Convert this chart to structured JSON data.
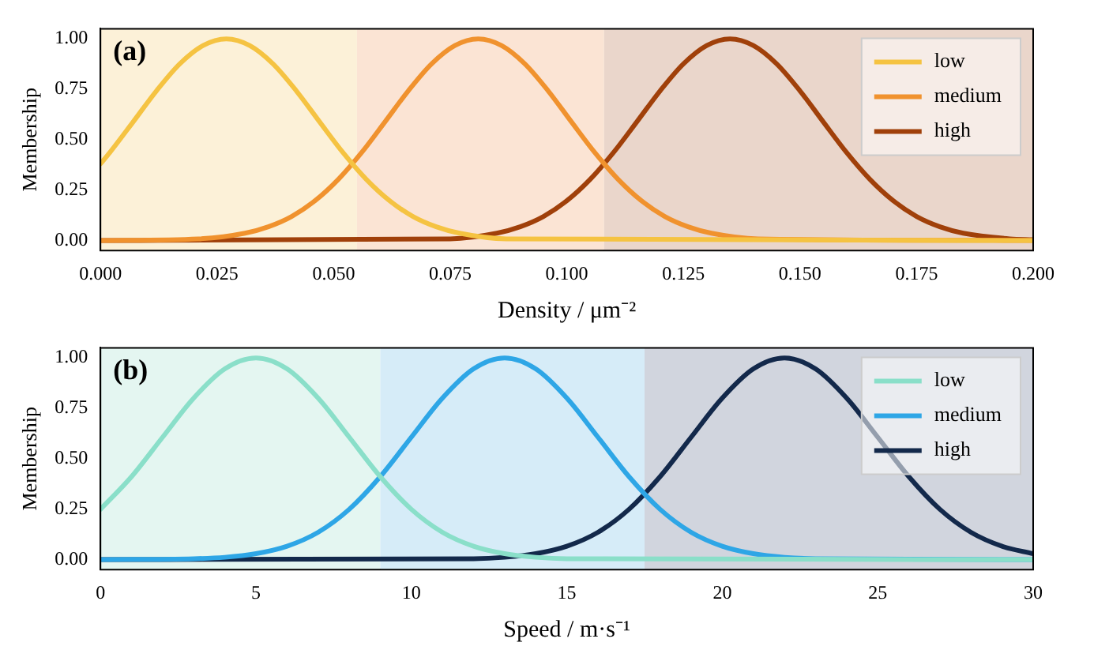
{
  "chart_data": [
    {
      "type": "line",
      "annotations": [
        "(a)"
      ],
      "xlabel": "Density / μm⁻²",
      "ylabel": "Membership",
      "xlim": [
        0,
        0.2
      ],
      "ylim": [
        -0.05,
        1.05
      ],
      "xticks": [
        {
          "value": 0,
          "label": "0.000"
        },
        {
          "value": 0.025,
          "label": "0.025"
        },
        {
          "value": 0.05,
          "label": "0.050"
        },
        {
          "value": 0.075,
          "label": "0.075"
        },
        {
          "value": 0.1,
          "label": "0.100"
        },
        {
          "value": 0.125,
          "label": "0.125"
        },
        {
          "value": 0.15,
          "label": "0.150"
        },
        {
          "value": 0.175,
          "label": "0.175"
        },
        {
          "value": 0.2,
          "label": "0.200"
        }
      ],
      "yticks": [
        {
          "value": 0,
          "label": "0.00"
        },
        {
          "value": 0.25,
          "label": "0.25"
        },
        {
          "value": 0.5,
          "label": "0.50"
        },
        {
          "value": 0.75,
          "label": "0.75"
        },
        {
          "value": 1,
          "label": "1.00"
        }
      ],
      "legend": "top right",
      "grid": false,
      "marker": "none",
      "line_style": "solid",
      "bands": [
        {
          "axis": "x",
          "from": 0,
          "to": 0.055,
          "color": "#fcf1d8"
        },
        {
          "axis": "x",
          "from": 0.055,
          "to": 0.108,
          "color": "#fbe4d4"
        },
        {
          "axis": "x",
          "from": 0.108,
          "to": 0.2,
          "color": "#ead6cb"
        }
      ],
      "series": [
        {
          "name": "low",
          "color": "#f5c342",
          "x": [
            0,
            0.002,
            0.007,
            0.012,
            0.017,
            0.022,
            0.027,
            0.032,
            0.037,
            0.042,
            0.047,
            0.052,
            0.057,
            0.062,
            0.067,
            0.072,
            0.077,
            0.087,
            0.2
          ],
          "values": [
            0.38,
            0.436,
            0.588,
            0.742,
            0.876,
            0.967,
            1,
            0.967,
            0.876,
            0.742,
            0.588,
            0.436,
            0.303,
            0.197,
            0.119,
            0.068,
            0.036,
            0.008,
            0
          ]
        },
        {
          "name": "medium",
          "color": "#f0922e",
          "x": [
            0,
            0.021,
            0.031,
            0.036,
            0.041,
            0.046,
            0.051,
            0.056,
            0.061,
            0.066,
            0.071,
            0.076,
            0.081,
            0.086,
            0.091,
            0.096,
            0.101,
            0.106,
            0.111,
            0.116,
            0.121,
            0.126,
            0.131,
            0.141,
            0.2
          ],
          "values": [
            0,
            0.008,
            0.036,
            0.068,
            0.119,
            0.197,
            0.303,
            0.436,
            0.588,
            0.742,
            0.876,
            0.967,
            1,
            0.967,
            0.876,
            0.742,
            0.588,
            0.436,
            0.303,
            0.197,
            0.119,
            0.068,
            0.036,
            0.008,
            0
          ]
        },
        {
          "name": "high",
          "color": "#a0400a",
          "x": [
            0,
            0.075,
            0.085,
            0.09,
            0.095,
            0.1,
            0.105,
            0.11,
            0.115,
            0.12,
            0.125,
            0.13,
            0.135,
            0.14,
            0.145,
            0.15,
            0.155,
            0.16,
            0.165,
            0.17,
            0.175,
            0.18,
            0.185,
            0.195,
            0.2
          ],
          "values": [
            0,
            0.008,
            0.036,
            0.068,
            0.119,
            0.197,
            0.303,
            0.436,
            0.588,
            0.742,
            0.876,
            0.967,
            1,
            0.967,
            0.876,
            0.742,
            0.588,
            0.436,
            0.303,
            0.197,
            0.119,
            0.068,
            0.036,
            0.008,
            0.004
          ]
        }
      ]
    },
    {
      "type": "line",
      "annotations": [
        "(b)"
      ],
      "xlabel": "Speed / m·s⁻¹",
      "ylabel": "Membership",
      "xlim": [
        0,
        30
      ],
      "ylim": [
        -0.05,
        1.05
      ],
      "xticks": [
        0,
        5,
        10,
        15,
        20,
        25,
        30
      ],
      "yticks": [
        {
          "value": 0,
          "label": "0.00"
        },
        {
          "value": 0.25,
          "label": "0.25"
        },
        {
          "value": 0.5,
          "label": "0.50"
        },
        {
          "value": 0.75,
          "label": "0.75"
        },
        {
          "value": 1,
          "label": "1.00"
        }
      ],
      "legend": "top right",
      "grid": false,
      "marker": "none",
      "line_style": "solid",
      "bands": [
        {
          "axis": "x",
          "from": 0,
          "to": 9,
          "color": "#e4f6f1"
        },
        {
          "axis": "x",
          "from": 9,
          "to": 17.5,
          "color": "#d6ecf8"
        },
        {
          "axis": "x",
          "from": 17.5,
          "to": 30,
          "color": "#d1d5de"
        }
      ],
      "series": [
        {
          "name": "low",
          "color": "#8adfc9",
          "x": [
            0,
            1,
            2,
            3,
            4,
            5,
            6,
            7,
            8,
            9,
            10,
            11,
            12,
            13,
            14,
            15,
            30
          ],
          "values": [
            0.249,
            0.411,
            0.607,
            0.801,
            0.946,
            1,
            0.946,
            0.801,
            0.607,
            0.411,
            0.249,
            0.135,
            0.066,
            0.029,
            0.011,
            0.004,
            0
          ]
        },
        {
          "name": "medium",
          "color": "#2ea6e6",
          "x": [
            0,
            3,
            4,
            5,
            6,
            7,
            8,
            9,
            10,
            11,
            12,
            13,
            14,
            15,
            16,
            17,
            18,
            19,
            20,
            21,
            22,
            23,
            30
          ],
          "values": [
            0,
            0.004,
            0.011,
            0.029,
            0.066,
            0.135,
            0.249,
            0.411,
            0.607,
            0.801,
            0.946,
            1,
            0.946,
            0.801,
            0.607,
            0.411,
            0.249,
            0.135,
            0.066,
            0.029,
            0.011,
            0.004,
            0
          ]
        },
        {
          "name": "high",
          "color": "#13294b",
          "x": [
            0,
            12,
            13,
            14,
            15,
            16,
            17,
            18,
            19,
            20,
            21,
            22,
            23,
            24,
            25,
            26,
            27,
            28,
            29,
            30
          ],
          "values": [
            0,
            0.004,
            0.011,
            0.029,
            0.066,
            0.135,
            0.249,
            0.411,
            0.607,
            0.801,
            0.946,
            1,
            0.946,
            0.801,
            0.607,
            0.411,
            0.249,
            0.135,
            0.066,
            0.029
          ]
        }
      ]
    }
  ]
}
